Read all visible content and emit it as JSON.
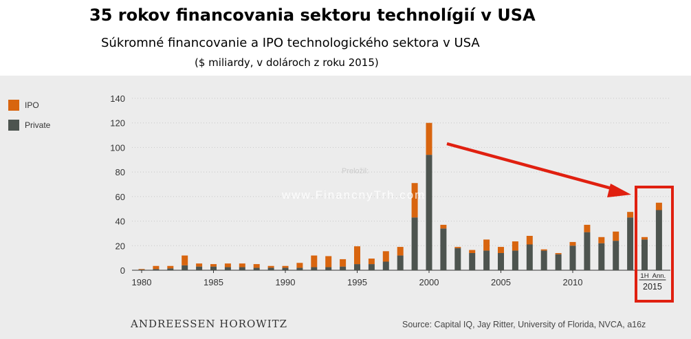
{
  "header": {
    "title": "35 rokov financovania sektoru technolígií v USA",
    "subtitle": "Súkromné financovanie a IPO technologického sektora v USA",
    "units": "($ miliardy, v dolároch z roku 2015)"
  },
  "legend": [
    {
      "label": "IPO",
      "color": "#d8650f"
    },
    {
      "label": "Private",
      "color": "#4d544f"
    }
  ],
  "footer": {
    "brand": "ANDREESSEN HOROWITZ",
    "source": "Source: Capital IQ, Jay Ritter, University of Florida, NVCA, a16z"
  },
  "watermark": {
    "small": "Preložil:",
    "site": "www.FinancnyTrh.com"
  },
  "chart_data": {
    "type": "bar",
    "stacked": true,
    "ylim": [
      0,
      140
    ],
    "yticks": [
      0,
      20,
      40,
      60,
      80,
      100,
      120,
      140
    ],
    "xticks": [
      "1980",
      "1985",
      "1990",
      "1995",
      "2000",
      "2005",
      "2010"
    ],
    "grid": true,
    "legend_position": "left",
    "categories": [
      "1980",
      "1981",
      "1982",
      "1983",
      "1984",
      "1985",
      "1986",
      "1987",
      "1988",
      "1989",
      "1990",
      "1991",
      "1992",
      "1993",
      "1994",
      "1995",
      "1996",
      "1997",
      "1998",
      "1999",
      "2000",
      "2001",
      "2002",
      "2003",
      "2004",
      "2005",
      "2006",
      "2007",
      "2008",
      "2009",
      "2010",
      "2011",
      "2012",
      "2013",
      "2014",
      "1H",
      "Ann."
    ],
    "series": [
      {
        "name": "Private",
        "color": "#4d544f",
        "values": [
          0.5,
          1,
          1.5,
          4,
          3,
          3,
          2.5,
          2.5,
          2,
          2,
          2,
          2,
          2.5,
          2.5,
          3,
          5,
          5,
          7,
          12,
          43,
          94,
          34,
          18,
          14,
          16,
          14,
          16,
          21,
          16,
          13,
          20,
          31,
          22,
          24,
          43,
          25,
          49
        ]
      },
      {
        "name": "IPO",
        "color": "#d8650f",
        "values": [
          0.5,
          2.5,
          2,
          8,
          2.5,
          2,
          3,
          3,
          3,
          1.5,
          1.5,
          4,
          9.5,
          9,
          6,
          14.5,
          4.5,
          8.5,
          7,
          28,
          26,
          3,
          1,
          2.5,
          9,
          5,
          7.5,
          7,
          1,
          1,
          3,
          6,
          5,
          7.5,
          4.5,
          2,
          6
        ]
      }
    ],
    "highlight_group": {
      "label": "2015",
      "categories": [
        "1H",
        "Ann."
      ]
    }
  }
}
